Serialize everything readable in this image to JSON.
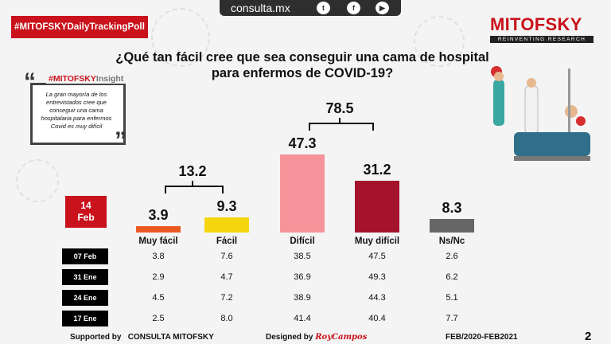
{
  "topbar": {
    "url": "consulta.mx",
    "icons": [
      "twitter-icon",
      "facebook-icon",
      "youtube-icon"
    ]
  },
  "tag": "#MITOFSKYDailyTrackingPoll",
  "logo": {
    "name": "MITOFSKY",
    "tagline": "REINVENTING RESEARCH"
  },
  "insight": {
    "brand": "#MITOFSKY",
    "suffix": "Insight",
    "text": "La gran mayoría de los entrevistados cree que conseguir una cama hospitalaria para enfermos Covid es muy difícil"
  },
  "current_date": {
    "day": "14",
    "month": "Feb"
  },
  "footer": {
    "supported": "Supported by",
    "sponsors": "CONSULTA   MITOFSKY",
    "designed": "Designed by",
    "designer": "RoyCampos",
    "period": "FEB/2020-FEB2021",
    "page": "2"
  },
  "colors": {
    "accent": "#c9121b",
    "muy_facil": "#ea5a22",
    "facil": "#f5d60e",
    "dificil": "#f7939a",
    "muy_dificil": "#a4122b",
    "nsnc": "#666666"
  },
  "chart_data": {
    "type": "bar",
    "title": "¿Qué tan fácil cree que sea conseguir  una cama de hospital para enfermos de COVID-19?",
    "categories": [
      "Muy fácil",
      "Fácil",
      "Difícil",
      "Muy difícil",
      "Ns/Nc"
    ],
    "values": [
      3.9,
      9.3,
      47.3,
      31.2,
      8.3
    ],
    "value_labels": [
      "3.9",
      "9.3",
      "47.3",
      "31.2",
      "8.3"
    ],
    "groups": [
      {
        "label": "13.2",
        "categories": [
          "Muy fácil",
          "Fácil"
        ]
      },
      {
        "label": "78.5",
        "categories": [
          "Difícil",
          "Muy difícil"
        ]
      }
    ],
    "history": {
      "dates": [
        "07 Feb",
        "31 Ene",
        "24 Ene",
        "17 Ene"
      ],
      "rows": [
        [
          "3.8",
          "7.6",
          "38.5",
          "47.5",
          "2.6"
        ],
        [
          "2.9",
          "4.7",
          "36.9",
          "49.3",
          "6.2"
        ],
        [
          "4.5",
          "7.2",
          "38.9",
          "44.3",
          "5.1"
        ],
        [
          "2.5",
          "8.0",
          "41.4",
          "40.4",
          "7.7"
        ]
      ]
    },
    "ylim": [
      0,
      50
    ]
  }
}
